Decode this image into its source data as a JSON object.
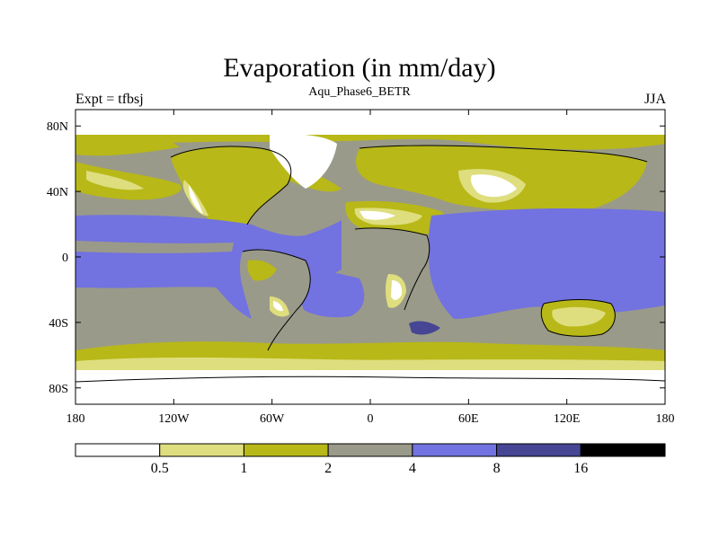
{
  "header": {
    "title": "Evaporation (in mm/day)",
    "subtitle": "Aqu_Phase6_BETR",
    "left_label": "Expt = tfbsj",
    "right_label": "JJA"
  },
  "map": {
    "projection": "cylindrical-equidistant",
    "lon_range": [
      -180,
      180
    ],
    "lat_range": [
      -90,
      90
    ],
    "lat_ticks": [
      {
        "value": 80,
        "label": "80N"
      },
      {
        "value": 40,
        "label": "40N"
      },
      {
        "value": 0,
        "label": "0"
      },
      {
        "value": -40,
        "label": "40S"
      },
      {
        "value": -80,
        "label": "80S"
      }
    ],
    "lon_ticks": [
      {
        "value": -180,
        "label": "180"
      },
      {
        "value": -120,
        "label": "120W"
      },
      {
        "value": -60,
        "label": "60W"
      },
      {
        "value": 0,
        "label": "0"
      },
      {
        "value": 60,
        "label": "60E"
      },
      {
        "value": 120,
        "label": "120E"
      },
      {
        "value": 180,
        "label": "180"
      }
    ]
  },
  "colorbar": {
    "colors": [
      "#ffffff",
      "#dede7e",
      "#b8b818",
      "#9a9a8a",
      "#7272e0",
      "#464694",
      "#000000"
    ],
    "labels": [
      "0.5",
      "1",
      "2",
      "4",
      "8",
      "16"
    ]
  }
}
